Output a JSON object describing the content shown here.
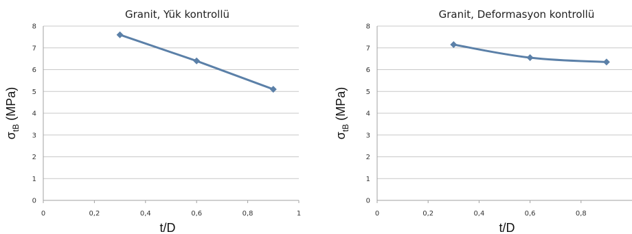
{
  "chart_data": [
    {
      "type": "line",
      "title": "Granit, Yük kontrollü",
      "xlabel": "t/D",
      "ylabel_main": "σ",
      "ylabel_sub": "tB",
      "ylabel_unit": " (MPa)",
      "xlim": [
        0,
        1
      ],
      "ylim": [
        0,
        8
      ],
      "xticks": [
        0,
        0.2,
        0.4,
        0.6,
        0.8,
        1
      ],
      "xtick_labels": [
        "0",
        "0,2",
        "0,4",
        "0,6",
        "0,8",
        "1"
      ],
      "yticks": [
        0,
        1,
        2,
        3,
        4,
        5,
        6,
        7,
        8
      ],
      "ytick_labels": [
        "0",
        "1",
        "2",
        "3",
        "4",
        "5",
        "6",
        "7",
        "8"
      ],
      "grid": true,
      "smooth": false,
      "series": [
        {
          "x": [
            0.3,
            0.6,
            0.9
          ],
          "y": [
            7.6,
            6.4,
            5.1
          ],
          "color": "#5b80a8"
        }
      ]
    },
    {
      "type": "line",
      "title": "Granit, Deformasyon kontrollü",
      "xlabel": "t/D",
      "ylabel_main": "σ",
      "ylabel_sub": "tB",
      "ylabel_unit": " (MPa)",
      "xlim": [
        0,
        1
      ],
      "ylim": [
        0,
        8
      ],
      "xticks": [
        0,
        0.2,
        0.4,
        0.6,
        0.8
      ],
      "xtick_labels": [
        "0",
        "0,2",
        "0,4",
        "0,6",
        "0,8"
      ],
      "yticks": [
        0,
        1,
        2,
        3,
        4,
        5,
        6,
        7,
        8
      ],
      "ytick_labels": [
        "0",
        "1",
        "2",
        "3",
        "4",
        "5",
        "6",
        "7",
        "8"
      ],
      "grid": true,
      "smooth": true,
      "series": [
        {
          "x": [
            0.3,
            0.6,
            0.9
          ],
          "y": [
            7.15,
            6.55,
            6.35
          ],
          "color": "#5b80a8"
        }
      ]
    }
  ]
}
